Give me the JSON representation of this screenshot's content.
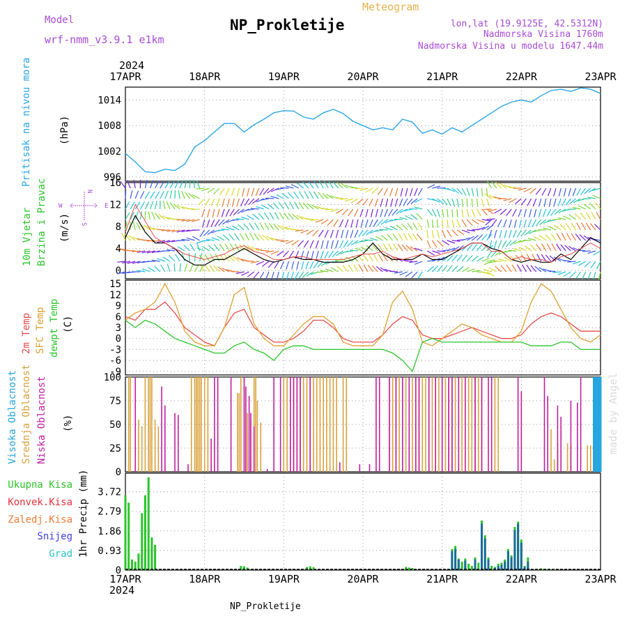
{
  "header": {
    "title": "NP_Prokletije",
    "meteogram_label": "Meteogram",
    "model_label": "Model",
    "model_name": "wrf-nmm_v3.9.1 e1km",
    "location": "lon,lat (19.9125E, 42.5312N)",
    "altitude": "Nadmorska Visina 1760m",
    "model_altitude": "Nadmorska Visina u modelu 1647.44m",
    "year_top": "2024",
    "footer": "NP_Prokletije",
    "watermark": "made by Angel"
  },
  "colors": {
    "pressure": "#2aa7e8",
    "temp2m": "#e84b4b",
    "sfc": "#e0a030",
    "dewpt": "#2ac42a",
    "windspeed": "#000000",
    "gust": "#e84b4b",
    "cloud_high": "#27a6df",
    "cloud_mid": "#d9a13a",
    "cloud_low": "#c21ea0",
    "precip_total": "#2ac42a",
    "precip_conv": "#e8303a",
    "precip_frozen": "#f07a30",
    "precip_snow": "#3f3fe0",
    "precip_graupel": "#2ac4c4",
    "label_purple": "#a84bd8",
    "label_orange": "#e8b24a"
  },
  "chart_data": [
    {
      "type": "line",
      "name": "pressure",
      "ylabel_lines": [
        "Pritisak na nivou mora",
        "(hPa)"
      ],
      "ylim": [
        995,
        1017
      ],
      "yticks": [
        "996",
        "1002",
        "1008",
        "1014"
      ],
      "x_dates": [
        "17APR",
        "18APR",
        "19APR",
        "20APR",
        "21APR",
        "22APR",
        "23APR"
      ],
      "x_hours": [
        0,
        3,
        6,
        9,
        12,
        15,
        18,
        21,
        24,
        27,
        30,
        33,
        36,
        39,
        42,
        45,
        48,
        51,
        54,
        57,
        60,
        63,
        66,
        69,
        72,
        75,
        78,
        81,
        84,
        87,
        90,
        93,
        96,
        99,
        102,
        105,
        108,
        111,
        114,
        117,
        120,
        123,
        126,
        129,
        132,
        135,
        138,
        141,
        144
      ],
      "values": [
        1001.5,
        999.5,
        997.2,
        997.0,
        997.8,
        997.5,
        999.0,
        1003.0,
        1004.5,
        1006.5,
        1008.5,
        1008.5,
        1006.5,
        1008.2,
        1009.5,
        1011.0,
        1011.5,
        1011.4,
        1010.0,
        1009.5,
        1011.0,
        1011.8,
        1010.8,
        1009.0,
        1008.0,
        1007.0,
        1007.5,
        1007.0,
        1009.5,
        1008.8,
        1006.2,
        1007.0,
        1006.0,
        1007.5,
        1006.5,
        1008.0,
        1009.5,
        1011.0,
        1012.5,
        1013.5,
        1014.0,
        1013.5,
        1015.0,
        1016.2,
        1016.5,
        1016.0,
        1016.8,
        1016.5,
        1015.5
      ],
      "grid": true
    },
    {
      "type": "line",
      "name": "wind",
      "ylabel_lines": [
        "10m Vjetar",
        "Brzina i Pravac",
        "(m/s)"
      ],
      "compass": [
        "N",
        "W",
        "E",
        "S"
      ],
      "ylim": [
        -1.5,
        16
      ],
      "yticks": [
        "0",
        "4",
        "8",
        "12",
        "16"
      ],
      "x_hours": [
        0,
        3,
        6,
        9,
        12,
        15,
        18,
        21,
        24,
        27,
        30,
        33,
        36,
        39,
        42,
        45,
        48,
        51,
        54,
        57,
        60,
        63,
        66,
        69,
        72,
        75,
        78,
        81,
        84,
        87,
        90,
        93,
        96,
        99,
        102,
        105,
        108,
        111,
        114,
        117,
        120,
        123,
        126,
        129,
        132,
        135,
        138,
        141,
        144
      ],
      "speed": [
        6,
        10,
        7,
        5,
        5,
        4,
        2,
        1,
        1,
        2,
        2,
        3,
        4,
        3,
        2,
        1.5,
        2,
        2.5,
        2,
        2,
        1.5,
        1.5,
        1.5,
        2,
        3,
        5,
        3,
        2,
        2,
        2,
        3,
        2,
        2,
        3,
        4,
        5,
        5,
        4,
        3.5,
        2,
        1.5,
        2,
        1.5,
        1.5,
        3,
        2,
        4,
        6,
        5
      ],
      "gust": [
        7,
        12,
        9,
        6,
        5,
        4,
        3,
        2.5,
        2,
        2.5,
        3,
        4,
        4.5,
        3.5,
        3,
        2,
        2,
        2.5,
        2.5,
        2,
        2,
        2,
        2,
        2.5,
        3,
        3,
        3.5,
        2.5,
        2,
        2.5,
        3,
        2.5,
        3,
        3.5,
        4,
        5,
        5,
        3.5,
        3.5,
        2,
        2.5,
        2,
        2,
        1.5,
        2.5,
        3,
        4,
        5,
        4
      ],
      "grid": true
    },
    {
      "type": "line",
      "name": "temperature",
      "ylabel_lines": [
        "2m Temp",
        "SFC Temp",
        "dewpt Temp",
        "(C)"
      ],
      "ylim": [
        -10,
        16
      ],
      "yticks": [
        "-9",
        "-6",
        "-3",
        "0",
        "3",
        "6",
        "9",
        "12",
        "15"
      ],
      "x_hours": [
        0,
        3,
        6,
        9,
        12,
        15,
        18,
        21,
        24,
        27,
        30,
        33,
        36,
        39,
        42,
        45,
        48,
        51,
        54,
        57,
        60,
        63,
        66,
        69,
        72,
        75,
        78,
        81,
        84,
        87,
        90,
        93,
        96,
        99,
        102,
        105,
        108,
        111,
        114,
        117,
        120,
        123,
        126,
        129,
        132,
        135,
        138,
        141,
        144
      ],
      "series": [
        {
          "name": "2m Temp",
          "values": [
            6,
            5,
            8,
            8,
            10,
            7,
            3,
            1,
            -1,
            -2,
            3,
            7,
            8,
            3,
            1,
            -1,
            -1,
            0,
            2,
            5,
            5,
            3,
            0,
            -1,
            -1,
            -1,
            1,
            4,
            6,
            5,
            1,
            0,
            0,
            1,
            2,
            3,
            2,
            1,
            0,
            0,
            1,
            4,
            6,
            7,
            6,
            4,
            2,
            2,
            2
          ]
        },
        {
          "name": "SFC Temp",
          "values": [
            5,
            7,
            8,
            10,
            15,
            10,
            2,
            -1,
            -2,
            -2,
            3,
            12,
            14,
            4,
            0,
            -2,
            -2,
            1,
            4,
            6,
            6,
            4,
            -1,
            -2,
            -2,
            -2,
            1,
            10,
            13,
            8,
            -1,
            -2,
            0,
            2,
            4,
            3,
            1,
            0,
            -1,
            -1,
            2,
            10,
            15,
            13,
            8,
            3,
            0,
            -1,
            1
          ]
        },
        {
          "name": "dewpt Temp",
          "values": [
            5,
            3,
            5,
            4,
            2,
            0,
            -1,
            -2,
            -3,
            -4,
            -4,
            -2,
            -1,
            -3,
            -4,
            -6,
            -3,
            -2,
            -2,
            -3,
            -3,
            -3,
            -3,
            -3,
            -3,
            -3,
            -3,
            -4,
            -6,
            -9,
            -1,
            0,
            -1,
            -1,
            -1,
            -1,
            -1,
            -1,
            -1,
            -1,
            -1,
            -2,
            -2,
            -2,
            -1,
            -1,
            -3,
            -3,
            -3
          ]
        }
      ],
      "grid": true
    },
    {
      "type": "bar",
      "name": "clouds",
      "ylabel_lines": [
        "Visoka Oblacnost",
        "Srednja Oblacnost",
        "Niska Oblacnost",
        "(%)"
      ],
      "ylim": [
        0,
        100
      ],
      "yticks": [
        "0",
        "25",
        "50",
        "75",
        "100"
      ],
      "series": [
        {
          "name": "Visoka Oblacnost",
          "hours": [
            142,
            142.5,
            143,
            143.5,
            144
          ],
          "values": [
            100,
            100,
            100,
            100,
            100
          ]
        },
        {
          "name": "Srednja Oblacnost",
          "hours": [
            1,
            1.5,
            4,
            5,
            6,
            7,
            7.5,
            8,
            9,
            10,
            20,
            21,
            21.5,
            22,
            22.5,
            23,
            24,
            25,
            34,
            34.5,
            35,
            36,
            37,
            38,
            39,
            39.5,
            40,
            41,
            48,
            49,
            50,
            51,
            52,
            53,
            54,
            55,
            56,
            57,
            58,
            59,
            60,
            61,
            62,
            63,
            64,
            66,
            67,
            80,
            81,
            82,
            83,
            84,
            85,
            86,
            87,
            88,
            89,
            90,
            91,
            92,
            93,
            94,
            95,
            96,
            97,
            98,
            99,
            100,
            101,
            102,
            104,
            105,
            106,
            107,
            108,
            112,
            113,
            120,
            129,
            130,
            131,
            134,
            135,
            140,
            141
          ],
          "values": [
            100,
            100,
            55,
            48,
            100,
            100,
            100,
            100,
            55,
            48,
            100,
            100,
            100,
            100,
            100,
            100,
            100,
            100,
            83,
            83,
            100,
            100,
            62,
            55,
            100,
            100,
            75,
            52,
            100,
            100,
            100,
            100,
            100,
            100,
            100,
            100,
            100,
            100,
            100,
            100,
            100,
            100,
            100,
            100,
            100,
            100,
            100,
            100,
            100,
            100,
            100,
            100,
            100,
            100,
            100,
            100,
            100,
            100,
            100,
            100,
            100,
            100,
            100,
            100,
            100,
            100,
            100,
            100,
            100,
            100,
            100,
            100,
            100,
            100,
            100,
            100,
            100,
            85,
            45,
            13,
            30,
            30,
            28,
            28,
            28
          ]
        },
        {
          "name": "Niska Oblacnost",
          "hours": [
            3,
            11,
            12,
            15,
            16,
            19,
            26,
            27,
            28,
            32,
            36,
            36.5,
            37.5,
            38,
            39,
            43,
            45,
            47,
            50,
            51,
            52,
            53,
            56,
            65,
            71,
            74,
            76,
            77,
            80,
            82,
            84,
            86,
            88,
            89,
            92,
            94,
            96,
            98,
            99,
            101,
            103,
            106,
            108,
            110,
            111,
            119,
            120,
            127,
            128,
            131,
            132,
            135,
            137,
            138
          ],
          "values": [
            100,
            90,
            70,
            62,
            60,
            8,
            35,
            100,
            100,
            100,
            100,
            90,
            80,
            62,
            48,
            3,
            100,
            100,
            100,
            100,
            100,
            100,
            100,
            10,
            8,
            8,
            100,
            100,
            100,
            100,
            100,
            100,
            100,
            100,
            100,
            100,
            100,
            100,
            100,
            100,
            100,
            100,
            100,
            100,
            100,
            100,
            85,
            100,
            80,
            70,
            58,
            75,
            73,
            100
          ]
        }
      ],
      "grid": true
    },
    {
      "type": "bar",
      "name": "precipitation",
      "ylabel_lines": [
        "1hr Precip (mm)"
      ],
      "legend": [
        "Ukupna Kisa",
        "Konvek.Kisa",
        "Zaledj.Kisa",
        "Snijeg",
        "Grad"
      ],
      "ylim": [
        0,
        4.6
      ],
      "yticks": [
        "0",
        "0.93",
        "1.86",
        "2.79",
        "3.72"
      ],
      "series": [
        {
          "name": "Ukupna Kisa",
          "hours": [
            0,
            1,
            2,
            3,
            4,
            5,
            6,
            7,
            8,
            9
          ],
          "values": [
            3.55,
            3.2,
            0.5,
            0.4,
            0.78,
            2.7,
            3.55,
            4.4,
            1.55,
            1.2
          ]
        },
        {
          "name": "Ukupna Kisa",
          "hours": [
            35,
            36,
            37,
            55,
            56,
            57,
            85,
            86,
            87,
            99,
            100,
            101,
            102,
            103,
            104,
            105,
            106,
            107,
            108,
            109,
            110,
            111,
            112,
            113,
            114,
            115,
            116,
            117,
            118,
            119,
            120,
            121,
            122,
            126,
            127,
            128,
            130
          ],
          "values": [
            0.2,
            0.18,
            0.12,
            0.15,
            0.18,
            0.14,
            0.15,
            0.12,
            0.1,
            1.0,
            1.15,
            0.55,
            0.4,
            0.55,
            0.3,
            0.2,
            0.6,
            0.35,
            2.35,
            1.65,
            0.6,
            0.2,
            0.15,
            0.3,
            0.35,
            0.5,
            1.0,
            0.7,
            2.05,
            2.3,
            1.45,
            0.2,
            0.6,
            0.08,
            0.06,
            0.05,
            0.02
          ]
        },
        {
          "name": "Snijeg",
          "hours": [
            99,
            100,
            101,
            103,
            106,
            108,
            109,
            110,
            112,
            113,
            114,
            115,
            116,
            117,
            118,
            119,
            120,
            121,
            122
          ],
          "values": [
            0.9,
            1.0,
            0.5,
            0.45,
            0.5,
            2.2,
            1.5,
            0.5,
            0.1,
            0.2,
            0.25,
            0.4,
            0.9,
            0.6,
            1.9,
            2.2,
            1.3,
            0.15,
            0.4
          ]
        }
      ],
      "grid": true
    }
  ]
}
